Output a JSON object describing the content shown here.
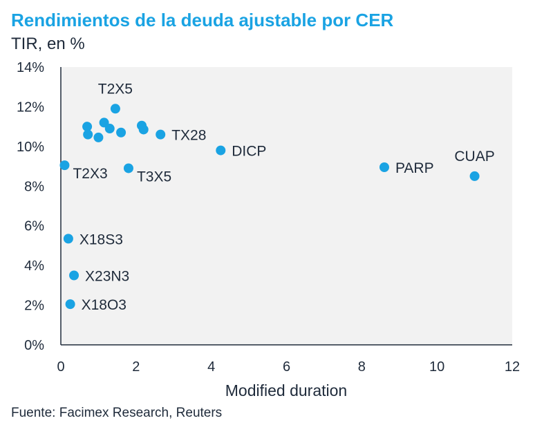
{
  "chart_data": {
    "type": "scatter",
    "title": "Rendimientos de la deuda ajustable por CER",
    "subtitle": "TIR, en %",
    "xlabel": "Modified duration",
    "ylabel": "TIR, en %",
    "xlim": [
      0,
      12
    ],
    "ylim": [
      0,
      14
    ],
    "xticks": [
      "0",
      "2",
      "4",
      "6",
      "8",
      "10",
      "12"
    ],
    "yticks": [
      "0%",
      "2%",
      "4%",
      "6%",
      "8%",
      "10%",
      "12%",
      "14%"
    ],
    "grid": false,
    "marker_color": "#1aa3e3",
    "points": [
      {
        "x": 1.45,
        "y": 11.9,
        "label": "T2X5",
        "label_pos": "above"
      },
      {
        "x": 0.7,
        "y": 11.0,
        "label": ""
      },
      {
        "x": 0.72,
        "y": 10.6,
        "label": ""
      },
      {
        "x": 1.0,
        "y": 10.45,
        "label": ""
      },
      {
        "x": 1.15,
        "y": 11.2,
        "label": ""
      },
      {
        "x": 1.3,
        "y": 10.9,
        "label": ""
      },
      {
        "x": 1.6,
        "y": 10.7,
        "label": ""
      },
      {
        "x": 2.15,
        "y": 11.05,
        "label": ""
      },
      {
        "x": 2.2,
        "y": 10.85,
        "label": ""
      },
      {
        "x": 2.65,
        "y": 10.6,
        "label": "TX28",
        "label_pos": "right"
      },
      {
        "x": 4.25,
        "y": 9.8,
        "label": "DICP",
        "label_pos": "right"
      },
      {
        "x": 0.1,
        "y": 9.05,
        "label": "T2X3",
        "label_pos": "below-right"
      },
      {
        "x": 1.8,
        "y": 8.9,
        "label": "T3X5",
        "label_pos": "below-right"
      },
      {
        "x": 8.6,
        "y": 8.95,
        "label": "PARP",
        "label_pos": "right"
      },
      {
        "x": 11.0,
        "y": 8.5,
        "label": "CUAP",
        "label_pos": "above"
      },
      {
        "x": 0.2,
        "y": 5.35,
        "label": "X18S3",
        "label_pos": "right"
      },
      {
        "x": 0.35,
        "y": 3.5,
        "label": "X23N3",
        "label_pos": "right"
      },
      {
        "x": 0.25,
        "y": 2.05,
        "label": "X18O3",
        "label_pos": "right"
      }
    ]
  },
  "source": "Fuente: Facimex Research, Reuters"
}
